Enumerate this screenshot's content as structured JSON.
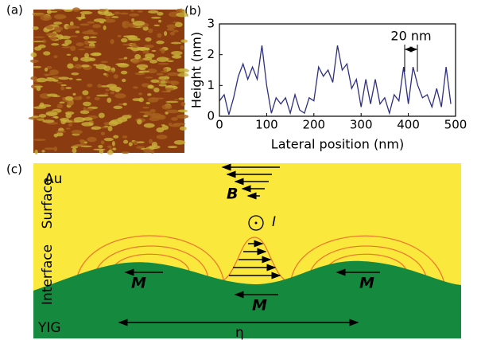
{
  "panels": {
    "a": "(a)",
    "b": "(b)",
    "c": "(c)"
  },
  "chart_data": {
    "type": "line",
    "xlabel": "Lateral position (nm)",
    "ylabel": "Height (nm)",
    "annotation": "20 nm",
    "x": [
      0,
      10,
      20,
      30,
      40,
      50,
      60,
      70,
      80,
      90,
      100,
      110,
      120,
      130,
      140,
      150,
      160,
      170,
      180,
      190,
      200,
      210,
      220,
      230,
      240,
      250,
      260,
      270,
      280,
      290,
      300,
      310,
      320,
      330,
      340,
      350,
      360,
      370,
      380,
      390,
      400,
      410,
      420,
      430,
      440,
      450,
      460,
      470,
      480,
      490
    ],
    "series": [
      {
        "color": "#2e2f7e",
        "values": [
          0.5,
          0.7,
          0.05,
          0.6,
          1.3,
          1.7,
          1.2,
          1.6,
          1.2,
          2.3,
          1.0,
          0.1,
          0.6,
          0.4,
          0.6,
          0.1,
          0.7,
          0.2,
          0.1,
          0.6,
          0.5,
          1.6,
          1.3,
          1.5,
          1.1,
          2.3,
          1.5,
          1.7,
          0.9,
          1.2,
          0.3,
          1.2,
          0.4,
          1.2,
          0.4,
          0.6,
          0.1,
          0.7,
          0.5,
          1.6,
          0.4,
          1.6,
          1.0,
          0.6,
          0.7,
          0.3,
          0.9,
          0.3,
          1.6,
          0.4
        ]
      }
    ],
    "xlim": [
      0,
      500
    ],
    "ylim": [
      0,
      3
    ],
    "xticks": [
      0,
      100,
      200,
      300,
      400,
      500
    ],
    "yticks": [
      0,
      1,
      2,
      3
    ]
  },
  "diagram": {
    "au": "Au",
    "surface": "Surface",
    "interface": "Interface",
    "yig": "YIG",
    "b_field": "B",
    "current": "I",
    "magnetization": [
      "M",
      "M",
      "M"
    ],
    "period": "η"
  }
}
